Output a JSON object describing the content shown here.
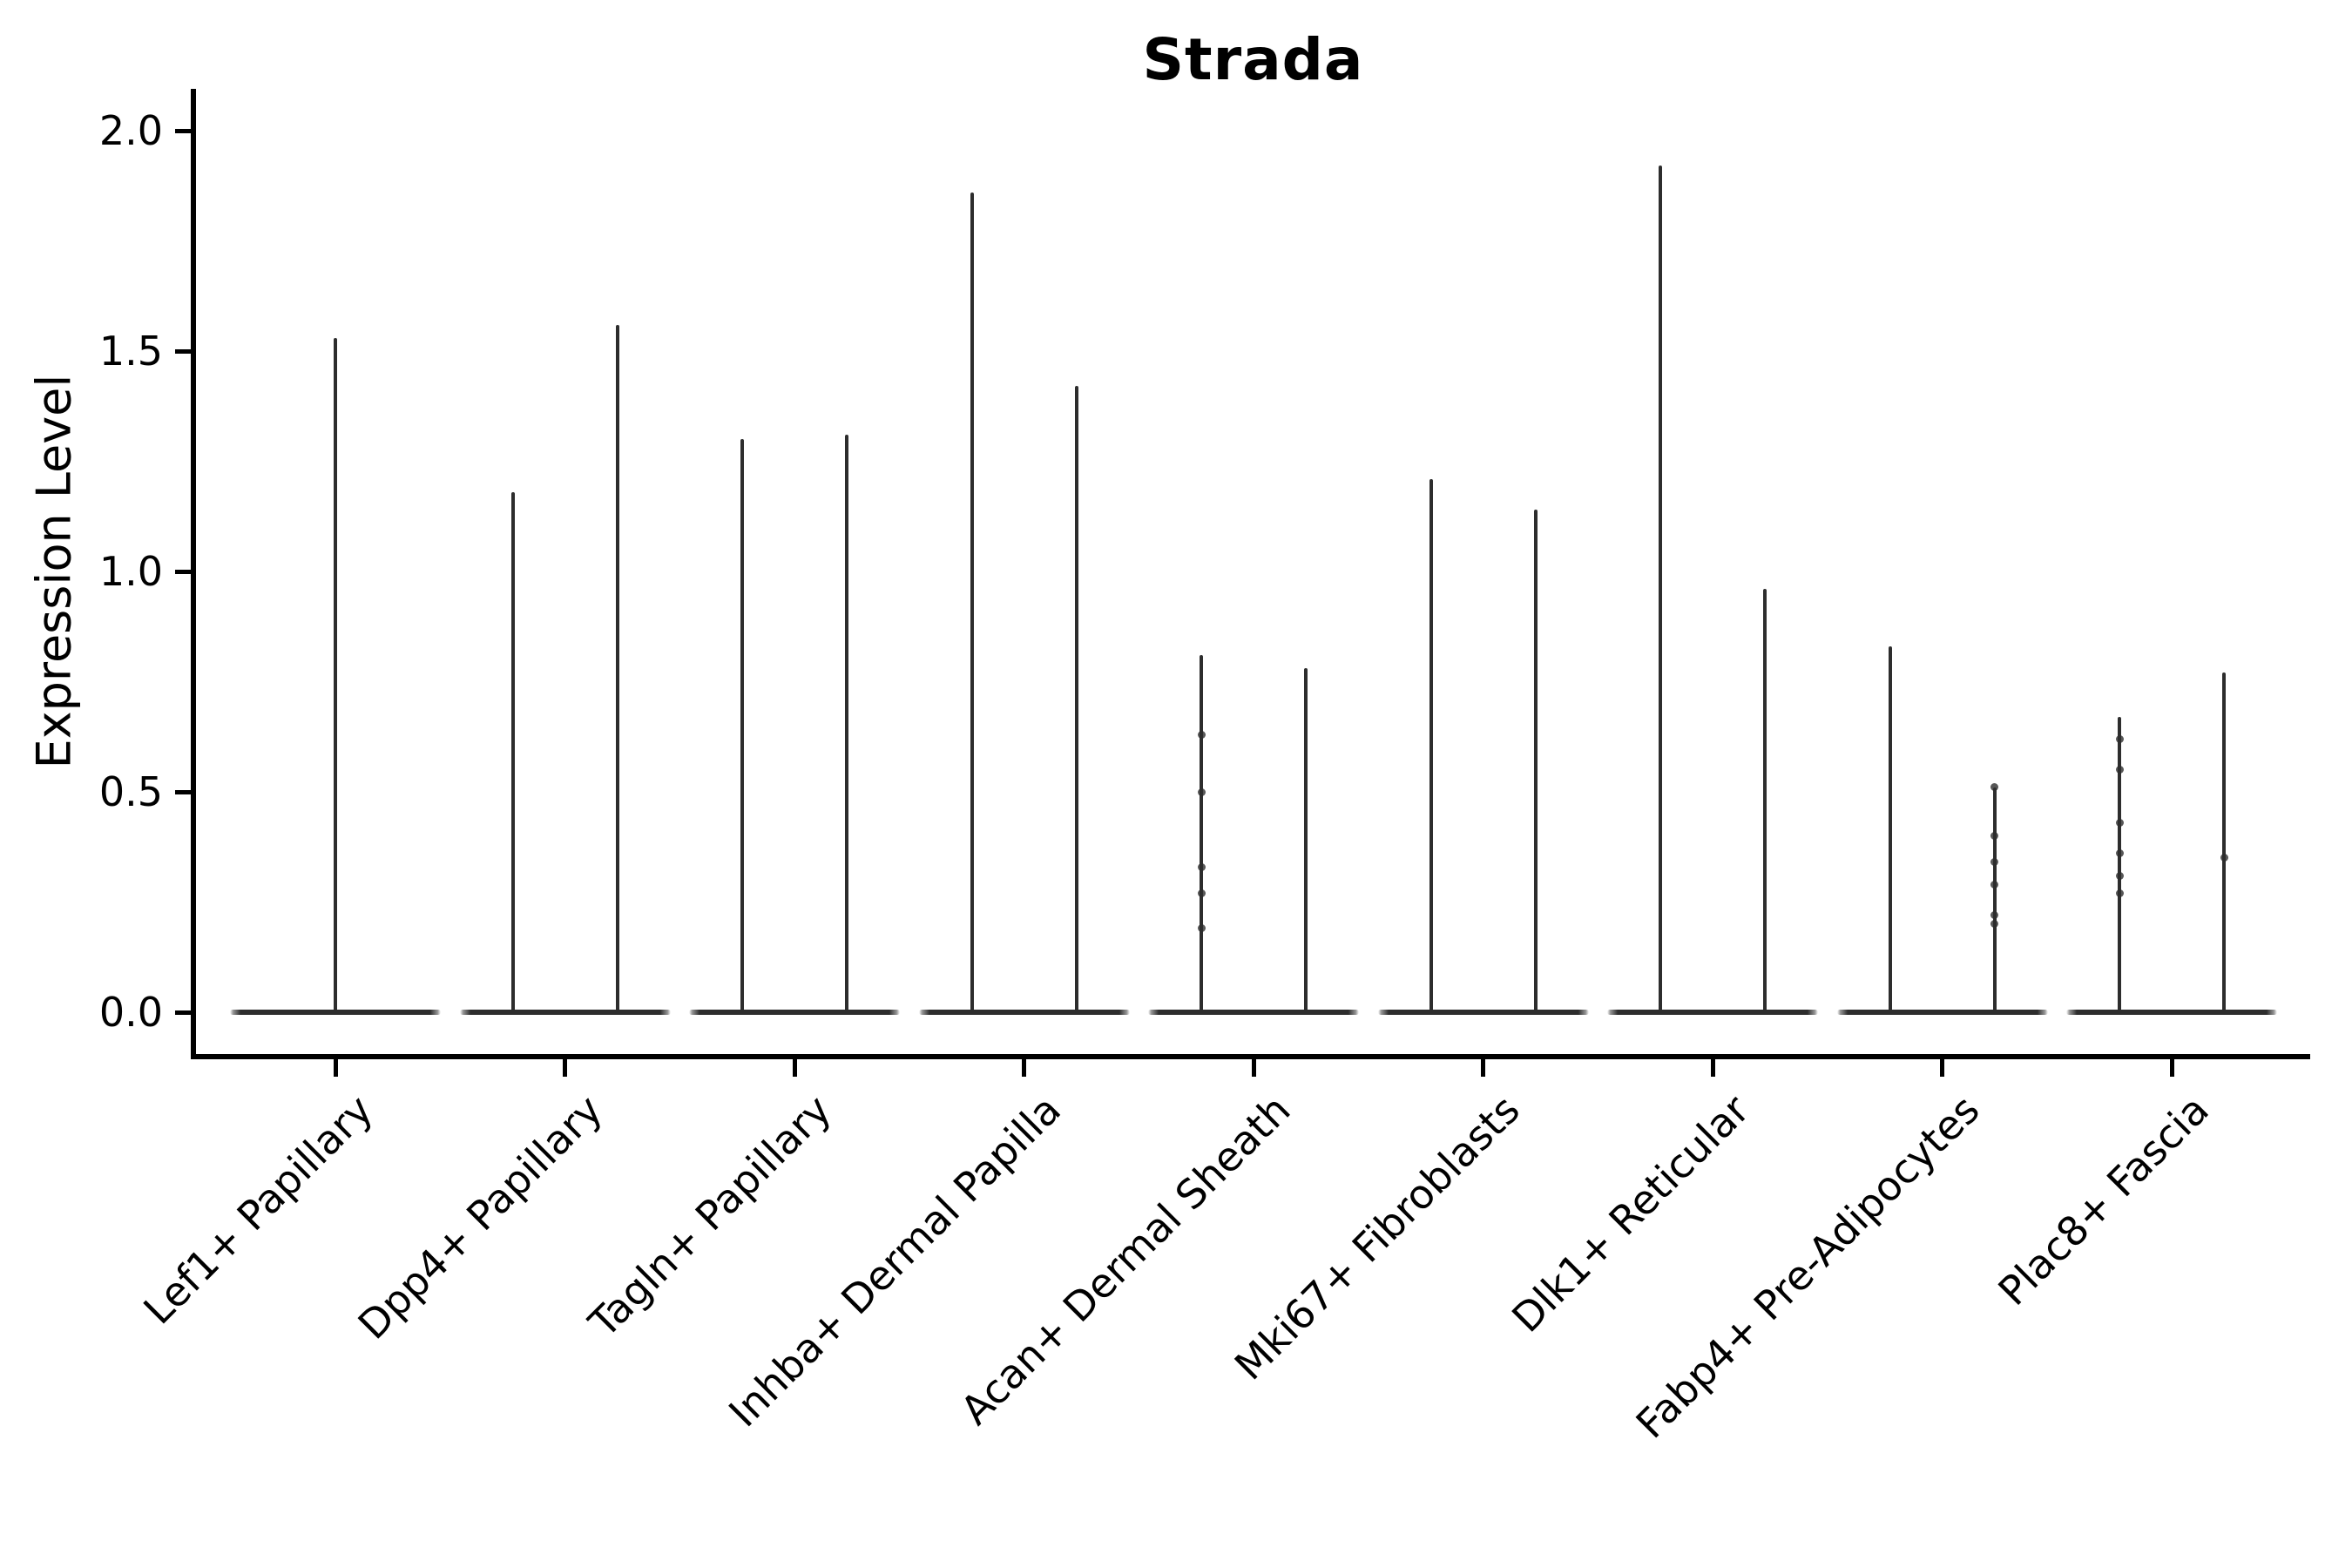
{
  "title": "Strada",
  "y_axis": {
    "label": "Expression Level",
    "ticks": [
      {
        "value": 0.0,
        "label": "0.0"
      },
      {
        "value": 0.5,
        "label": "0.5"
      },
      {
        "value": 1.0,
        "label": "1.0"
      },
      {
        "value": 1.5,
        "label": "1.5"
      },
      {
        "value": 2.0,
        "label": "2.0"
      }
    ]
  },
  "chart_data": {
    "type": "violin",
    "title": "Strada",
    "xlabel": "",
    "ylabel": "Expression Level",
    "ylim": [
      0,
      2.0
    ],
    "y_ticks": [
      0.0,
      0.5,
      1.0,
      1.5,
      2.0
    ],
    "grid": false,
    "legend": "none",
    "colors": {
      "violin": "#2d2d2d",
      "axis": "#000000",
      "background": "#ffffff"
    },
    "description": "Violin plot of Strada expression; each violin collapses to a flat line at 0 with a thin spike up to its maximum expression value.",
    "categories": [
      "Lef1+ Papillary",
      "Dpp4+ Papillary",
      "Tagln+ Papillary",
      "Inhba+ Dermal Papilla",
      "Acan+ Dermal Sheath",
      "Mki67+ Fibroblasts",
      "Dlk1+ Reticular",
      "Fabp4+ Pre-Adipocytes",
      "Plac8+ Fascia"
    ],
    "series": [
      {
        "category": "Lef1+ Papillary",
        "violins": [
          {
            "offset": 0,
            "max": 1.53,
            "dots": []
          }
        ]
      },
      {
        "category": "Dpp4+ Papillary",
        "violins": [
          {
            "offset": -1,
            "max": 1.18,
            "dots": []
          },
          {
            "offset": 1,
            "max": 1.56,
            "dots": []
          }
        ]
      },
      {
        "category": "Tagln+ Papillary",
        "violins": [
          {
            "offset": -1,
            "max": 1.3,
            "dots": []
          },
          {
            "offset": 1,
            "max": 1.31,
            "dots": []
          }
        ]
      },
      {
        "category": "Inhba+ Dermal Papilla",
        "violins": [
          {
            "offset": -1,
            "max": 1.86,
            "dots": []
          },
          {
            "offset": 1,
            "max": 1.42,
            "dots": []
          }
        ]
      },
      {
        "category": "Acan+ Dermal Sheath",
        "violins": [
          {
            "offset": -1,
            "max": 0.81,
            "dots": [
              0.63,
              0.5,
              0.33,
              0.27,
              0.19
            ]
          },
          {
            "offset": 1,
            "max": 0.78,
            "dots": []
          }
        ]
      },
      {
        "category": "Mki67+ Fibroblasts",
        "violins": [
          {
            "offset": -1,
            "max": 1.21,
            "dots": []
          },
          {
            "offset": 1,
            "max": 1.14,
            "dots": []
          }
        ]
      },
      {
        "category": "Dlk1+ Reticular",
        "violins": [
          {
            "offset": -1,
            "max": 1.92,
            "dots": []
          },
          {
            "offset": 1,
            "max": 0.96,
            "dots": []
          }
        ]
      },
      {
        "category": "Fabp4+ Pre-Adipocytes",
        "violins": [
          {
            "offset": -1,
            "max": 0.83,
            "dots": []
          },
          {
            "offset": 1,
            "max": 0.51,
            "dots": [
              0.51,
              0.4,
              0.34,
              0.29,
              0.22,
              0.2
            ]
          }
        ]
      },
      {
        "category": "Plac8+ Fascia",
        "violins": [
          {
            "offset": -1,
            "max": 0.67,
            "dots": [
              0.62,
              0.55,
              0.43,
              0.36,
              0.31,
              0.27
            ]
          },
          {
            "offset": 1,
            "max": 0.77,
            "dots": [
              0.35
            ]
          }
        ]
      }
    ]
  }
}
